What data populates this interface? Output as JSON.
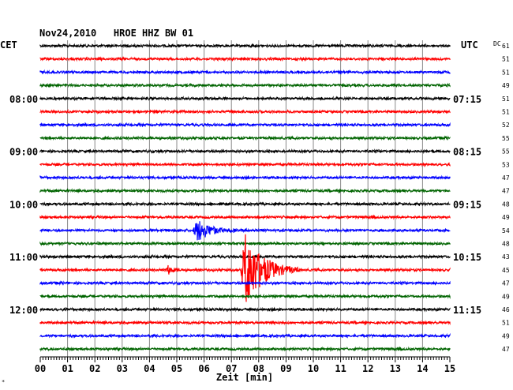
{
  "header": {
    "title": "Nov24,2010   HROE HHZ BW 01",
    "left_timezone": "CET",
    "right_timezone": "UTC",
    "dc_label": "DC"
  },
  "chart_data": {
    "type": "line",
    "xlabel": "Zeit [min]",
    "xlim": [
      0,
      15
    ],
    "x_ticks": [
      "00",
      "01",
      "02",
      "03",
      "04",
      "05",
      "06",
      "07",
      "08",
      "09",
      "10",
      "11",
      "12",
      "13",
      "14",
      "15"
    ],
    "row_interval_min": 15,
    "row_count": 24,
    "trace_colors": [
      "#000000",
      "#ff0000",
      "#0000ff",
      "#006400"
    ],
    "left_time_labels": [
      {
        "row": 4,
        "label": "08:00"
      },
      {
        "row": 8,
        "label": "09:00"
      },
      {
        "row": 12,
        "label": "10:00"
      },
      {
        "row": 16,
        "label": "11:00"
      },
      {
        "row": 20,
        "label": "12:00"
      }
    ],
    "right_time_labels": [
      {
        "row": 4,
        "label": "07:15"
      },
      {
        "row": 8,
        "label": "08:15"
      },
      {
        "row": 12,
        "label": "09:15"
      },
      {
        "row": 16,
        "label": "10:15"
      },
      {
        "row": 20,
        "label": "11:15"
      }
    ],
    "dc_values": [
      "61",
      "51",
      "51",
      "49",
      "51",
      "51",
      "52",
      "55",
      "55",
      "53",
      "47",
      "47",
      "48",
      "49",
      "54",
      "48",
      "43",
      "45",
      "47",
      "49",
      "46",
      "51",
      "49",
      "47"
    ],
    "events": [
      {
        "row": 14,
        "minute": 5.75,
        "amplitude": 1.6,
        "duration_min": 1.5
      },
      {
        "row": 17,
        "minute": 7.5,
        "amplitude": 5.5,
        "duration_min": 2.0
      },
      {
        "row": 17,
        "minute": 4.7,
        "amplitude": 0.6,
        "duration_min": 0.5
      }
    ]
  }
}
